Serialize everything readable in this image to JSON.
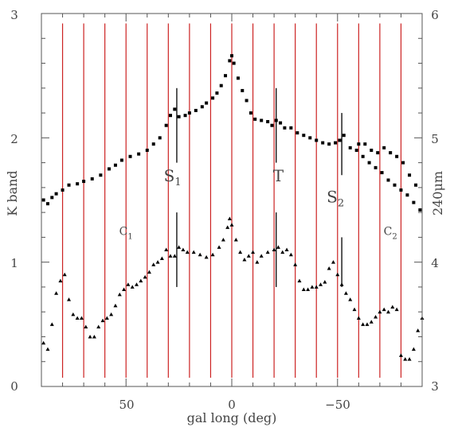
{
  "chart_data": {
    "type": "scatter",
    "title": "",
    "xlabel": "gal long (deg)",
    "ylabel": "K band",
    "ylabel_right": "240μm",
    "x_reversed": true,
    "xlim": [
      90,
      -90
    ],
    "ylim": [
      0,
      3
    ],
    "ylim_right": [
      3,
      6
    ],
    "x_tick_labels": [
      "50",
      "0",
      "−50"
    ],
    "y_tick_labels": [
      "0",
      "1",
      "2",
      "3"
    ],
    "y_right_tick_labels": [
      "3",
      "4",
      "5",
      "6"
    ],
    "grid": false,
    "legend": "none",
    "colors": {
      "marker": "#000000",
      "vertical_lines": "#cc2222",
      "frame": "#555555"
    },
    "red_vertical_lines_x": [
      80,
      70,
      60,
      50,
      40,
      30,
      20,
      10,
      0,
      -10,
      -20,
      -30,
      -40,
      -50,
      -60,
      -70,
      -80
    ],
    "annotations": [
      {
        "label": "S",
        "sub": "1",
        "x": 28,
        "y": 1.65
      },
      {
        "label": "T",
        "sub": "",
        "x": -22,
        "y": 1.65
      },
      {
        "label": "S",
        "sub": "2",
        "x": -49,
        "y": 1.48
      },
      {
        "label": "C",
        "sub": "1",
        "x": 50,
        "y": 1.22
      },
      {
        "label": "C",
        "sub": "2",
        "x": -75,
        "y": 1.22
      }
    ],
    "markers": [
      {
        "x": 26,
        "y1": 0.8,
        "y2": 1.4
      },
      {
        "x": -21,
        "y1": 0.8,
        "y2": 1.4
      },
      {
        "x": -52,
        "y1": 0.8,
        "y2": 1.2
      },
      {
        "x": 26,
        "y1": 1.8,
        "y2": 2.4
      },
      {
        "x": -21,
        "y1": 1.8,
        "y2": 2.4
      },
      {
        "x": -52,
        "y1": 1.7,
        "y2": 2.2
      }
    ],
    "series": [
      {
        "marker": "square",
        "axis": "left",
        "points": [
          [
            89,
            1.5
          ],
          [
            87,
            1.47
          ],
          [
            85,
            1.52
          ],
          [
            83,
            1.55
          ],
          [
            80,
            1.58
          ],
          [
            77,
            1.62
          ],
          [
            73,
            1.63
          ],
          [
            70,
            1.65
          ],
          [
            66,
            1.67
          ],
          [
            62,
            1.7
          ],
          [
            58,
            1.75
          ],
          [
            55,
            1.78
          ],
          [
            52,
            1.82
          ],
          [
            48,
            1.85
          ],
          [
            44,
            1.87
          ],
          [
            40,
            1.9
          ],
          [
            37,
            1.95
          ],
          [
            34,
            2.0
          ],
          [
            31,
            2.1
          ],
          [
            29,
            2.18
          ],
          [
            27,
            2.23
          ],
          [
            25,
            2.17
          ],
          [
            22,
            2.18
          ],
          [
            20,
            2.2
          ],
          [
            17,
            2.22
          ],
          [
            14,
            2.25
          ],
          [
            12,
            2.28
          ],
          [
            9,
            2.32
          ],
          [
            7,
            2.36
          ],
          [
            5,
            2.42
          ],
          [
            3,
            2.5
          ],
          [
            1,
            2.62
          ],
          [
            0,
            2.66
          ],
          [
            -1,
            2.6
          ],
          [
            -3,
            2.48
          ],
          [
            -5,
            2.38
          ],
          [
            -7,
            2.3
          ],
          [
            -9,
            2.2
          ],
          [
            -11,
            2.15
          ],
          [
            -14,
            2.14
          ],
          [
            -17,
            2.13
          ],
          [
            -19,
            2.1
          ],
          [
            -21,
            2.14
          ],
          [
            -23,
            2.12
          ],
          [
            -25,
            2.08
          ],
          [
            -28,
            2.08
          ],
          [
            -31,
            2.04
          ],
          [
            -34,
            2.02
          ],
          [
            -37,
            2.0
          ],
          [
            -40,
            1.98
          ],
          [
            -43,
            1.96
          ],
          [
            -46,
            1.95
          ],
          [
            -49,
            1.96
          ],
          [
            -51,
            1.98
          ],
          [
            -53,
            2.02
          ],
          [
            -56,
            1.92
          ],
          [
            -59,
            1.9
          ],
          [
            -62,
            1.85
          ],
          [
            -65,
            1.8
          ],
          [
            -68,
            1.76
          ],
          [
            -71,
            1.72
          ],
          [
            -74,
            1.66
          ],
          [
            -77,
            1.62
          ],
          [
            -80,
            1.58
          ],
          [
            -83,
            1.54
          ],
          [
            -86,
            1.48
          ],
          [
            -89,
            1.42
          ],
          [
            -60,
            1.95
          ],
          [
            -63,
            1.95
          ],
          [
            -66,
            1.9
          ],
          [
            -69,
            1.88
          ],
          [
            -72,
            1.92
          ],
          [
            -75,
            1.88
          ],
          [
            -78,
            1.85
          ],
          [
            -81,
            1.8
          ],
          [
            -84,
            1.7
          ],
          [
            -87,
            1.62
          ]
        ]
      },
      {
        "marker": "triangle",
        "axis": "right",
        "points": [
          [
            89,
            3.35
          ],
          [
            87,
            3.3
          ],
          [
            85,
            3.5
          ],
          [
            83,
            3.75
          ],
          [
            81,
            3.85
          ],
          [
            79,
            3.9
          ],
          [
            77,
            3.7
          ],
          [
            75,
            3.58
          ],
          [
            73,
            3.55
          ],
          [
            71,
            3.55
          ],
          [
            69,
            3.48
          ],
          [
            67,
            3.4
          ],
          [
            65,
            3.4
          ],
          [
            63,
            3.48
          ],
          [
            61,
            3.53
          ],
          [
            59,
            3.55
          ],
          [
            57,
            3.58
          ],
          [
            55,
            3.65
          ],
          [
            53,
            3.74
          ],
          [
            51,
            3.78
          ],
          [
            49,
            3.82
          ],
          [
            47,
            3.8
          ],
          [
            45,
            3.82
          ],
          [
            43,
            3.85
          ],
          [
            41,
            3.88
          ],
          [
            39,
            3.92
          ],
          [
            37,
            3.98
          ],
          [
            35,
            4.0
          ],
          [
            33,
            4.03
          ],
          [
            31,
            4.1
          ],
          [
            29,
            4.05
          ],
          [
            27,
            4.05
          ],
          [
            25,
            4.12
          ],
          [
            23,
            4.1
          ],
          [
            21,
            4.08
          ],
          [
            18,
            4.08
          ],
          [
            15,
            4.06
          ],
          [
            12,
            4.04
          ],
          [
            9,
            4.06
          ],
          [
            6,
            4.12
          ],
          [
            4,
            4.18
          ],
          [
            2,
            4.28
          ],
          [
            1,
            4.35
          ],
          [
            0,
            4.3
          ],
          [
            -2,
            4.18
          ],
          [
            -4,
            4.08
          ],
          [
            -6,
            4.02
          ],
          [
            -8,
            4.05
          ],
          [
            -10,
            4.08
          ],
          [
            -12,
            4.0
          ],
          [
            -14,
            4.05
          ],
          [
            -17,
            4.08
          ],
          [
            -20,
            4.1
          ],
          [
            -22,
            4.12
          ],
          [
            -24,
            4.08
          ],
          [
            -26,
            4.1
          ],
          [
            -28,
            4.06
          ],
          [
            -30,
            3.98
          ],
          [
            -32,
            3.85
          ],
          [
            -34,
            3.78
          ],
          [
            -36,
            3.78
          ],
          [
            -38,
            3.8
          ],
          [
            -40,
            3.8
          ],
          [
            -42,
            3.82
          ],
          [
            -44,
            3.84
          ],
          [
            -46,
            3.95
          ],
          [
            -48,
            4.0
          ],
          [
            -50,
            3.9
          ],
          [
            -52,
            3.82
          ],
          [
            -54,
            3.75
          ],
          [
            -56,
            3.7
          ],
          [
            -58,
            3.62
          ],
          [
            -60,
            3.55
          ],
          [
            -62,
            3.5
          ],
          [
            -64,
            3.5
          ],
          [
            -66,
            3.52
          ],
          [
            -68,
            3.56
          ],
          [
            -70,
            3.6
          ],
          [
            -72,
            3.62
          ],
          [
            -74,
            3.6
          ],
          [
            -76,
            3.64
          ],
          [
            -78,
            3.62
          ],
          [
            -80,
            3.25
          ],
          [
            -82,
            3.22
          ],
          [
            -84,
            3.22
          ],
          [
            -86,
            3.3
          ],
          [
            -88,
            3.45
          ],
          [
            -90,
            3.55
          ]
        ]
      }
    ]
  }
}
